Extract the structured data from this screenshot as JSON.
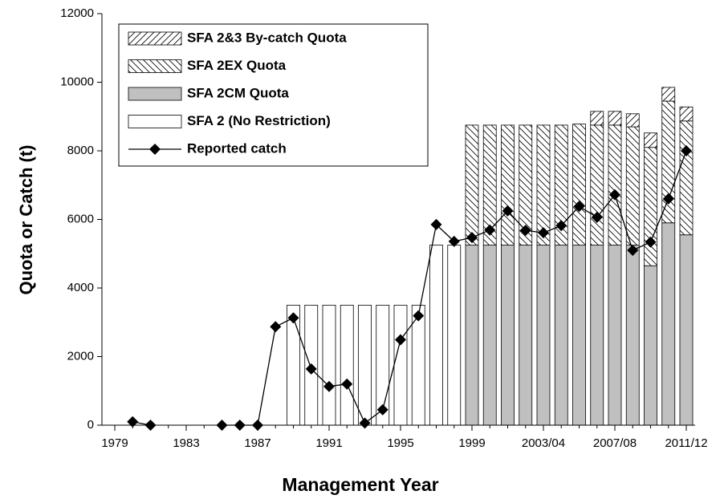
{
  "chart_data": {
    "type": "stacked-bar-line",
    "xlabel": "Management Year",
    "ylabel": "Quota or Catch (t)",
    "categories": [
      "1979",
      null,
      null,
      null,
      "1983",
      null,
      null,
      null,
      "1987",
      null,
      null,
      null,
      "1991",
      null,
      null,
      null,
      "1995",
      null,
      null,
      null,
      "1999",
      null,
      null,
      null,
      "2003/04",
      null,
      null,
      null,
      "2007/08",
      null,
      null,
      null,
      "2011/12"
    ],
    "ylim": [
      0,
      12000
    ],
    "yticks": [
      0,
      2000,
      4000,
      6000,
      8000,
      10000,
      12000
    ],
    "legend": "upper left",
    "series": [
      {
        "name": "SFA 2&3 By-catch Quota",
        "kind": "bar",
        "color": "#ffffff",
        "hatch": "/",
        "values": [
          null,
          null,
          null,
          null,
          null,
          null,
          null,
          null,
          null,
          null,
          null,
          null,
          null,
          null,
          null,
          null,
          null,
          null,
          null,
          null,
          null,
          null,
          null,
          null,
          null,
          null,
          null,
          400,
          400,
          380,
          420,
          400,
          410
        ]
      },
      {
        "name": "SFA 2EX Quota",
        "kind": "bar",
        "color": "#ffffff",
        "hatch": "\\",
        "values": [
          null,
          null,
          null,
          null,
          null,
          null,
          null,
          null,
          null,
          null,
          null,
          null,
          null,
          null,
          null,
          null,
          null,
          null,
          null,
          null,
          3500,
          3500,
          3500,
          3500,
          3500,
          3500,
          3530,
          3500,
          3500,
          3450,
          3450,
          3550,
          3320
        ]
      },
      {
        "name": "SFA 2CM Quota",
        "kind": "bar",
        "color": "#c0c0c0",
        "values": [
          null,
          null,
          null,
          null,
          null,
          null,
          null,
          null,
          null,
          null,
          null,
          null,
          null,
          null,
          null,
          null,
          null,
          null,
          null,
          null,
          5250,
          5250,
          5250,
          5250,
          5250,
          5250,
          5250,
          5250,
          5250,
          5250,
          4650,
          5900,
          5550
        ]
      },
      {
        "name": "SFA 2 (No Restriction)",
        "kind": "bar",
        "color": "#ffffff",
        "values": [
          null,
          null,
          null,
          null,
          null,
          null,
          null,
          null,
          null,
          null,
          3500,
          3500,
          3500,
          3500,
          3500,
          3500,
          3500,
          3500,
          5250,
          5250,
          null,
          null,
          null,
          null,
          null,
          null,
          null,
          null,
          null,
          null,
          null,
          null,
          null
        ]
      },
      {
        "name": "Reported catch",
        "kind": "line",
        "color": "#000000",
        "values": [
          null,
          100,
          0,
          null,
          null,
          null,
          0,
          0,
          0,
          2870,
          3130,
          1640,
          1130,
          1200,
          60,
          450,
          2490,
          3190,
          5850,
          5360,
          5470,
          5690,
          6250,
          5680,
          5610,
          5820,
          6380,
          6060,
          6720,
          5100,
          5340,
          6600,
          8000
        ]
      }
    ]
  }
}
